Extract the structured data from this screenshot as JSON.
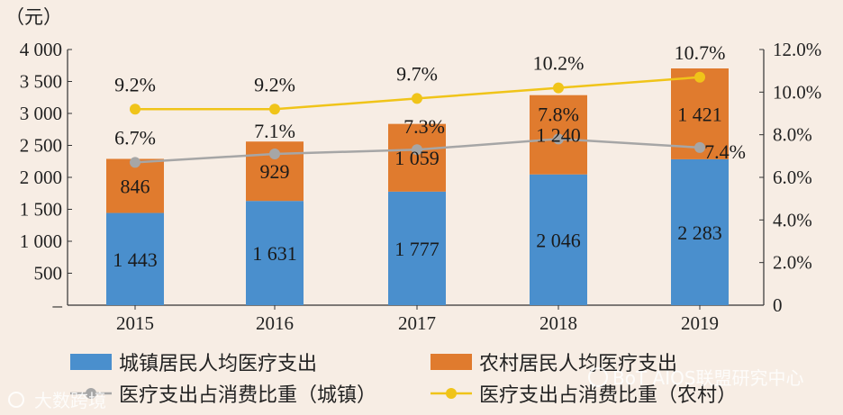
{
  "chart_data": {
    "type": "bar",
    "stacked": true,
    "categories": [
      "2015",
      "2016",
      "2017",
      "2018",
      "2019"
    ],
    "series": [
      {
        "name": "城镇居民人均医疗支出",
        "kind": "bar",
        "axis": "left",
        "color": "#4a8fcd",
        "values": [
          1443,
          1631,
          1777,
          2046,
          2283
        ],
        "labels": [
          "1 443",
          "1 631",
          "1 777",
          "2 046",
          "2 283"
        ]
      },
      {
        "name": "农村居民人均医疗支出",
        "kind": "bar",
        "axis": "left",
        "color": "#e07b2e",
        "values": [
          846,
          929,
          1059,
          1240,
          1421
        ],
        "labels": [
          "846",
          "929",
          "1 059",
          "1 240",
          "1 421"
        ]
      },
      {
        "name": "医疗支出占消费比重（城镇）",
        "kind": "line",
        "axis": "right",
        "color": "#a6a6a6",
        "values": [
          6.7,
          7.1,
          7.3,
          7.8,
          7.4
        ],
        "labels": [
          "6.7%",
          "7.1%",
          "7.3%",
          "7.8%",
          "7.4%"
        ]
      },
      {
        "name": "医疗支出占消费比重（农村）",
        "kind": "line",
        "axis": "right",
        "color": "#f0c419",
        "values": [
          9.2,
          9.2,
          9.7,
          10.2,
          10.7
        ],
        "labels": [
          "9.2%",
          "9.2%",
          "9.7%",
          "10.2%",
          "10.7%"
        ]
      }
    ],
    "y_left": {
      "unit": "（元）",
      "range": [
        0,
        4000
      ],
      "ticks": [
        500,
        1000,
        1500,
        2000,
        2500,
        3000,
        3500,
        4000
      ],
      "tick_labels": [
        "500",
        "1 000",
        "1 500",
        "2 000",
        "2 500",
        "3 000",
        "3 500",
        "4 000"
      ]
    },
    "y_right": {
      "range": [
        0,
        12
      ],
      "ticks": [
        0,
        2,
        4,
        6,
        8,
        10,
        12
      ],
      "tick_labels": [
        "0",
        "2.0%",
        "4.0%",
        "6.0%",
        "8.0%",
        "10.0%",
        "12.0%"
      ]
    },
    "legend_position": "bottom"
  },
  "watermarks": [
    "大数跨境",
    "BoT AIOS联盟研究中心"
  ]
}
